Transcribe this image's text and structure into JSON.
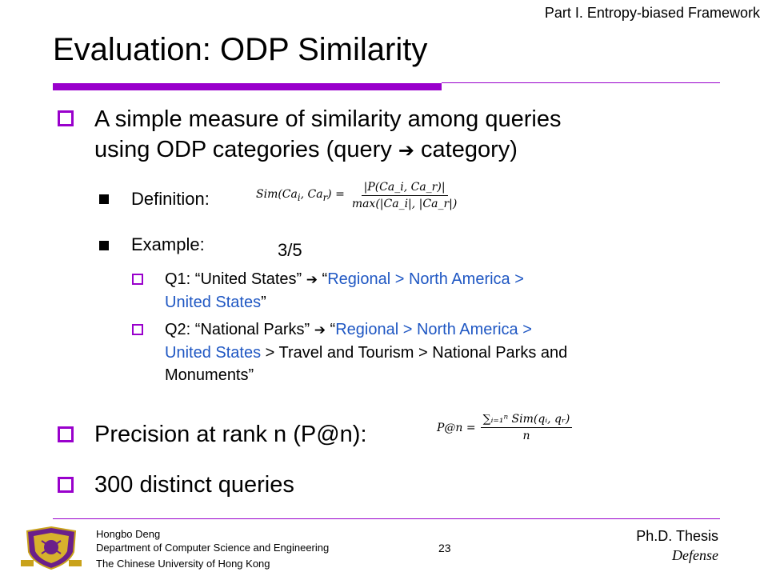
{
  "header": {
    "part_label": "Part I. Entropy-biased Framework",
    "title": "Evaluation: ODP Similarity"
  },
  "body": {
    "bullet1": {
      "line1": "A simple measure of similarity among queries",
      "line2_pre": "using ODP categories (query ",
      "arrow": "➔",
      "line2_post": " category)"
    },
    "definition": {
      "label": "Definition:",
      "formula_lhs": "Sim(Ca",
      "formula_lhs_sub1": "i",
      "formula_lhs_mid": ", Ca",
      "formula_lhs_sub2": "r",
      "formula_lhs_end": ") =",
      "formula_num": "|P(Ca_i, Ca_r)|",
      "formula_den": "max(|Ca_i|, |Ca_r|)"
    },
    "example": {
      "label": "Example:",
      "score": "3/5",
      "q1": {
        "pre": "Q1: “United States” ",
        "arrow": "➔",
        "open_quote": " “",
        "blue1": "Regional > North America >",
        "blue2": "United States",
        "end": "”"
      },
      "q2": {
        "pre": "Q2: “National Parks” ",
        "arrow": "➔",
        "open_quote": " “",
        "blue1": "Regional > North America >",
        "blue2": "United States",
        "rest1": " > Travel and Tourism > National Parks and",
        "rest2": "Monuments”"
      }
    },
    "bullet2": {
      "label": "Precision at rank n (P@n):",
      "formula_lhs": "P@n =",
      "formula_num": "∑ᵢ₌₁ⁿ Sim(qᵢ, qᵣ)",
      "formula_den": "n"
    },
    "bullet3": {
      "label": "300 distinct queries"
    }
  },
  "footer": {
    "author": "Hongbo Deng",
    "department": "Department of Computer Science and Engineering",
    "university": "The Chinese University of Hong Kong",
    "page_number": "23",
    "thesis_line1": "Ph.D. Thesis",
    "thesis_line2": "Defense"
  },
  "colors": {
    "accent": "#9900cc",
    "link_blue": "#1f57c3"
  }
}
